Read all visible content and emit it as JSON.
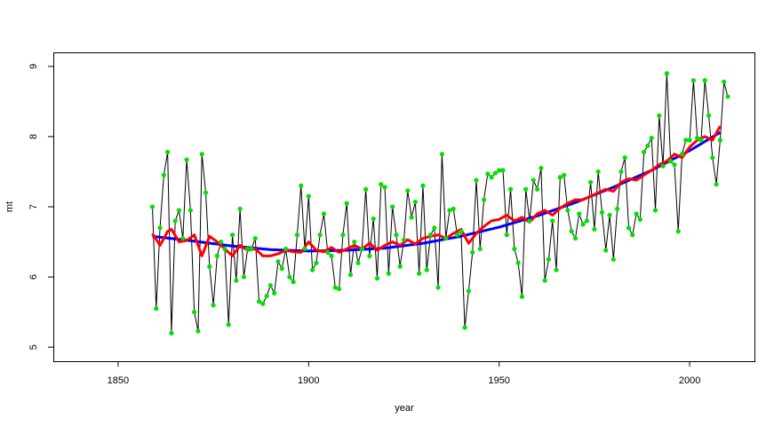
{
  "chart_data": {
    "type": "line",
    "xlabel": "year",
    "ylabel": "mt",
    "xlim": [
      1833,
      2017
    ],
    "ylim": [
      4.8,
      9.2
    ],
    "x_ticks": [
      1850,
      1900,
      1950,
      2000
    ],
    "y_ticks": [
      5,
      6,
      7,
      8,
      9
    ],
    "grid": false,
    "series": [
      {
        "kind": "observed",
        "line_color": "#000000",
        "point_color": "#00e000",
        "x_start": 1859,
        "values": [
          7.0,
          5.55,
          6.7,
          7.45,
          7.78,
          5.2,
          6.8,
          6.95,
          6.55,
          7.67,
          6.95,
          5.5,
          5.23,
          7.75,
          7.2,
          6.15,
          5.6,
          6.3,
          6.5,
          6.4,
          5.32,
          6.6,
          5.95,
          6.97,
          6.0,
          6.4,
          6.4,
          6.55,
          5.65,
          5.62,
          5.73,
          5.88,
          5.77,
          6.22,
          6.12,
          6.4,
          6.0,
          5.93,
          6.6,
          7.3,
          6.4,
          7.15,
          6.1,
          6.2,
          6.6,
          6.9,
          6.35,
          6.3,
          5.85,
          5.83,
          6.6,
          7.05,
          6.03,
          6.5,
          6.2,
          6.4,
          7.25,
          6.3,
          6.83,
          5.98,
          7.32,
          7.28,
          6.05,
          7.0,
          6.6,
          6.15,
          6.53,
          7.23,
          6.85,
          7.07,
          6.05,
          7.3,
          6.1,
          6.6,
          6.7,
          5.85,
          7.75,
          6.55,
          6.95,
          6.97,
          6.6,
          6.65,
          5.28,
          5.8,
          6.35,
          7.38,
          6.4,
          7.1,
          7.47,
          7.42,
          7.48,
          7.52,
          7.52,
          6.6,
          7.25,
          6.4,
          6.2,
          5.72,
          7.25,
          6.8,
          7.38,
          7.25,
          7.55,
          5.95,
          6.25,
          6.8,
          6.1,
          7.42,
          7.45,
          6.95,
          6.65,
          6.55,
          6.9,
          6.75,
          6.8,
          7.35,
          6.68,
          7.5,
          6.92,
          6.38,
          6.88,
          6.25,
          6.97,
          7.5,
          7.7,
          6.7,
          6.6,
          6.9,
          6.82,
          7.78,
          7.87,
          7.98,
          6.95,
          8.3,
          7.58,
          8.9,
          7.65,
          7.6,
          6.65,
          7.75,
          7.95,
          7.95,
          8.8,
          7.98,
          7.95,
          8.8,
          8.3,
          7.7,
          7.32,
          7.95,
          8.78,
          8.57
        ]
      },
      {
        "kind": "trend",
        "line_color": "#0000ff",
        "x": [
          1859,
          1870,
          1880,
          1890,
          1900,
          1910,
          1920,
          1930,
          1940,
          1950,
          1960,
          1970,
          1980,
          1990,
          2000,
          2008
        ],
        "values": [
          6.58,
          6.51,
          6.44,
          6.39,
          6.37,
          6.38,
          6.41,
          6.48,
          6.58,
          6.71,
          6.87,
          7.06,
          7.28,
          7.52,
          7.8,
          8.06
        ]
      },
      {
        "kind": "smooth",
        "line_color": "#ff0000",
        "x": [
          1859,
          1861,
          1863,
          1864,
          1866,
          1868,
          1870,
          1872,
          1874,
          1876,
          1878,
          1880,
          1882,
          1884,
          1886,
          1888,
          1890,
          1892,
          1894,
          1896,
          1898,
          1900,
          1902,
          1904,
          1906,
          1908,
          1910,
          1912,
          1914,
          1916,
          1918,
          1920,
          1922,
          1924,
          1926,
          1928,
          1930,
          1932,
          1934,
          1936,
          1938,
          1940,
          1942,
          1944,
          1946,
          1948,
          1950,
          1952,
          1954,
          1956,
          1958,
          1960,
          1962,
          1964,
          1966,
          1968,
          1970,
          1972,
          1974,
          1976,
          1978,
          1980,
          1982,
          1984,
          1986,
          1988,
          1990,
          1992,
          1994,
          1996,
          1998,
          2000,
          2002,
          2004,
          2006,
          2008
        ],
        "values": [
          6.62,
          6.45,
          6.65,
          6.68,
          6.5,
          6.52,
          6.6,
          6.3,
          6.58,
          6.5,
          6.4,
          6.3,
          6.45,
          6.38,
          6.4,
          6.3,
          6.3,
          6.33,
          6.38,
          6.36,
          6.35,
          6.5,
          6.38,
          6.36,
          6.42,
          6.35,
          6.4,
          6.45,
          6.4,
          6.48,
          6.38,
          6.45,
          6.5,
          6.45,
          6.53,
          6.47,
          6.55,
          6.58,
          6.6,
          6.55,
          6.62,
          6.68,
          6.48,
          6.62,
          6.72,
          6.8,
          6.82,
          6.88,
          6.8,
          6.85,
          6.78,
          6.9,
          6.95,
          6.88,
          6.98,
          7.05,
          7.1,
          7.1,
          7.15,
          7.2,
          7.25,
          7.22,
          7.35,
          7.4,
          7.38,
          7.45,
          7.52,
          7.6,
          7.65,
          7.75,
          7.7,
          7.85,
          7.95,
          8.0,
          7.95,
          8.15
        ]
      }
    ]
  }
}
